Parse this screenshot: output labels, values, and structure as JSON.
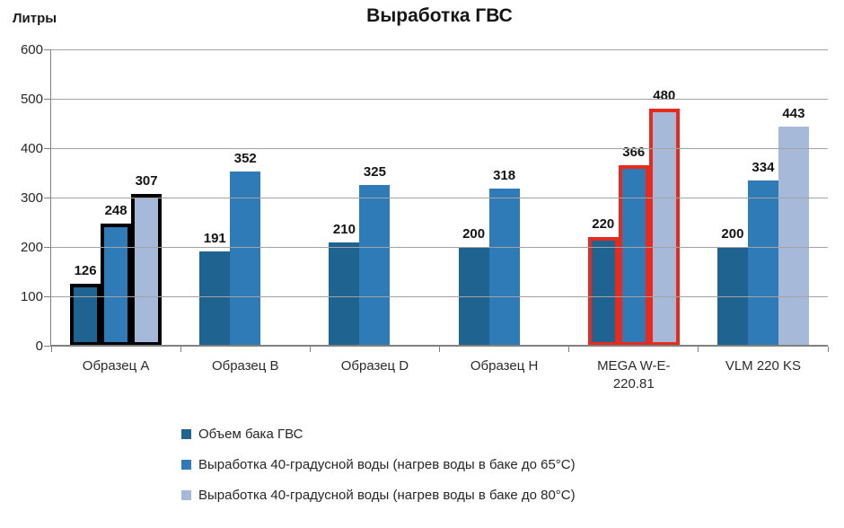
{
  "title": "Выработка ГВС",
  "y_axis_label": "Литры",
  "colors": {
    "series1": "#1F6391",
    "series2": "#2E7BB8",
    "series3": "#A6B9D8",
    "highlight_black": "#000000",
    "highlight_red": "#E8291E",
    "gridline": "#A3A3A3",
    "axis": "#808080"
  },
  "chart_data": {
    "type": "bar",
    "title": "Выработка ГВС",
    "ylabel": "Литры",
    "ylim": [
      0,
      600
    ],
    "y_ticks": [
      0,
      100,
      200,
      300,
      400,
      500,
      600
    ],
    "grid": true,
    "legend_position": "bottom",
    "categories": [
      "Образец A",
      "Образец B",
      "Образец D",
      "Образец H",
      "MEGA W-E-220.81",
      "VLM 220 KS"
    ],
    "series": [
      {
        "name": "Объем бака ГВС",
        "color": "#1F6391",
        "values": [
          126,
          191,
          210,
          200,
          220,
          200
        ]
      },
      {
        "name": "Выработка 40-градусной воды (нагрев воды в баке до 65°C)",
        "color": "#2E7BB8",
        "values": [
          248,
          352,
          325,
          318,
          366,
          334
        ]
      },
      {
        "name": "Выработка 40-градусной воды (нагрев воды в баке до 80°C)",
        "color": "#A6B9D8",
        "values": [
          307,
          null,
          null,
          null,
          480,
          443
        ]
      }
    ],
    "highlights": [
      {
        "category_index": 0,
        "outline_color": "#000000"
      },
      {
        "category_index": 4,
        "outline_color": "#E8291E"
      }
    ]
  }
}
